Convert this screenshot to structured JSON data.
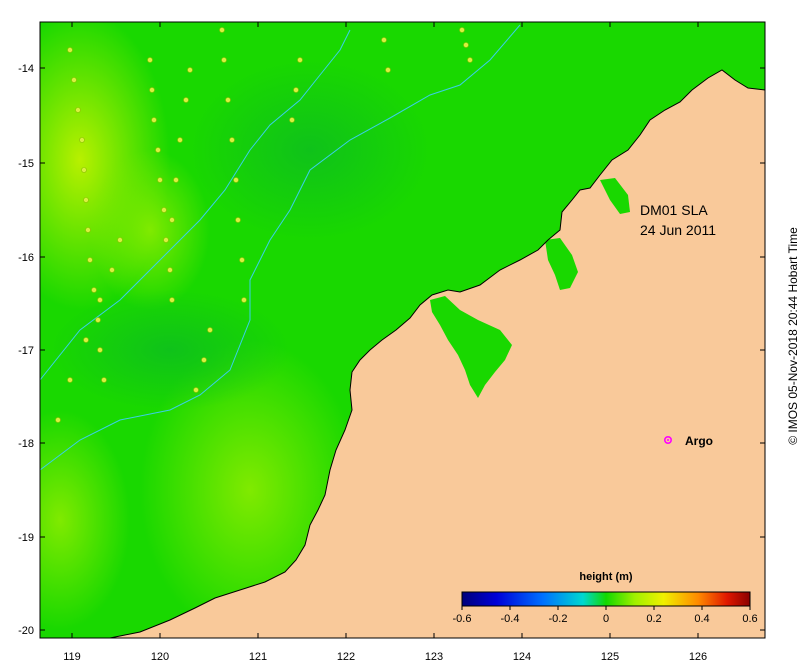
{
  "map": {
    "title_line1": "DM01 SLA",
    "title_line2": "24 Jun 2011",
    "lon_ticks": [
      "119",
      "120",
      "121",
      "122",
      "123",
      "124",
      "125",
      "126"
    ],
    "lat_ticks": [
      "-14",
      "-15",
      "-16",
      "-17",
      "-18",
      "-19",
      "-20"
    ],
    "argo_label": "Argo",
    "credit": "© IMOS 05-Nov-2018 20:44 Hobart Time",
    "colors": {
      "land": "#f9c99a",
      "ocean": "#19d800",
      "coast": "#000000",
      "contour": "#3ad0e8",
      "argo": "#ff00ff"
    }
  },
  "colorbar": {
    "label": "height (m)",
    "ticks": [
      "-0.6",
      "-0.4",
      "-0.2",
      "0",
      "0.2",
      "0.4",
      "0.6"
    ],
    "range": [
      -0.6,
      0.6
    ]
  }
}
